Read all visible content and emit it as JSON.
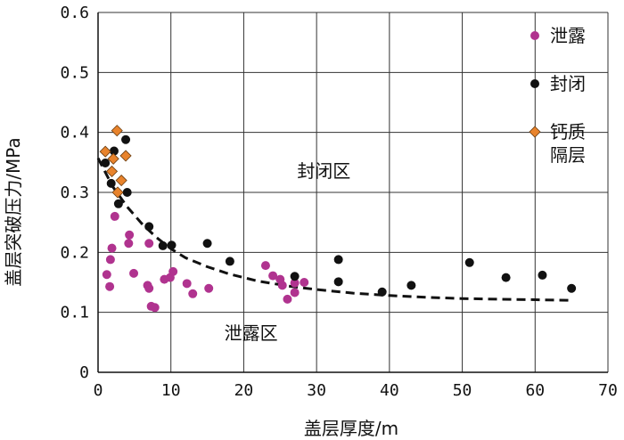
{
  "chart_data": {
    "type": "scatter",
    "title": "",
    "xlabel": "盖层厚度/m",
    "ylabel": "盖层突破压力/MPa",
    "xlim": [
      0,
      70
    ],
    "ylim": [
      0,
      0.6
    ],
    "xticks": [
      "0",
      "10",
      "20",
      "30",
      "40",
      "50",
      "60",
      "70"
    ],
    "yticks": [
      "0",
      "0.1",
      "0.2",
      "0.3",
      "0.4",
      "0.5",
      "0.6"
    ],
    "grid": true,
    "legend_position": "top-right",
    "series": [
      {
        "name": "泄露",
        "marker": "circle",
        "color": "#b0338f",
        "points": [
          [
            1.2,
            0.163
          ],
          [
            1.6,
            0.143
          ],
          [
            1.7,
            0.188
          ],
          [
            1.9,
            0.207
          ],
          [
            2.3,
            0.26
          ],
          [
            4.2,
            0.215
          ],
          [
            4.3,
            0.229
          ],
          [
            4.9,
            0.165
          ],
          [
            6.8,
            0.145
          ],
          [
            7.0,
            0.14
          ],
          [
            7.0,
            0.215
          ],
          [
            7.3,
            0.11
          ],
          [
            7.8,
            0.108
          ],
          [
            9.1,
            0.155
          ],
          [
            9.9,
            0.158
          ],
          [
            10.3,
            0.168
          ],
          [
            12.2,
            0.148
          ],
          [
            13.0,
            0.131
          ],
          [
            15.2,
            0.14
          ],
          [
            23.0,
            0.178
          ],
          [
            24.0,
            0.161
          ],
          [
            25.0,
            0.155
          ],
          [
            25.3,
            0.145
          ],
          [
            26.0,
            0.122
          ],
          [
            27.0,
            0.149
          ],
          [
            27.0,
            0.133
          ],
          [
            28.3,
            0.15
          ]
        ]
      },
      {
        "name": "封闭",
        "marker": "circle",
        "color": "#111111",
        "points": [
          [
            1.0,
            0.349
          ],
          [
            1.8,
            0.315
          ],
          [
            2.2,
            0.369
          ],
          [
            2.8,
            0.281
          ],
          [
            3.8,
            0.388
          ],
          [
            4.0,
            0.3
          ],
          [
            7.0,
            0.243
          ],
          [
            8.9,
            0.211
          ],
          [
            10.1,
            0.212
          ],
          [
            15.0,
            0.215
          ],
          [
            18.1,
            0.185
          ],
          [
            27.0,
            0.16
          ],
          [
            33.0,
            0.188
          ],
          [
            33.0,
            0.151
          ],
          [
            39.0,
            0.134
          ],
          [
            43.0,
            0.145
          ],
          [
            51.0,
            0.183
          ],
          [
            56.0,
            0.158
          ],
          [
            61.0,
            0.162
          ],
          [
            65.0,
            0.14
          ]
        ]
      },
      {
        "name": "钙质隔层",
        "legend_lines": [
          "钙质",
          "隔层"
        ],
        "marker": "diamond",
        "color": "#e8832c",
        "points": [
          [
            1.0,
            0.368
          ],
          [
            1.9,
            0.335
          ],
          [
            2.1,
            0.356
          ],
          [
            2.6,
            0.403
          ],
          [
            2.7,
            0.3
          ],
          [
            3.2,
            0.32
          ],
          [
            3.8,
            0.361
          ]
        ]
      }
    ],
    "fit_curve": {
      "style": "dashed",
      "color": "#111111",
      "points": [
        [
          0,
          0.357
        ],
        [
          2,
          0.31
        ],
        [
          4,
          0.276
        ],
        [
          6,
          0.248
        ],
        [
          8,
          0.225
        ],
        [
          10,
          0.206
        ],
        [
          12,
          0.191
        ],
        [
          15,
          0.176
        ],
        [
          18,
          0.164
        ],
        [
          22,
          0.152
        ],
        [
          26,
          0.144
        ],
        [
          30,
          0.138
        ],
        [
          35,
          0.132
        ],
        [
          40,
          0.128
        ],
        [
          45,
          0.125
        ],
        [
          50,
          0.123
        ],
        [
          55,
          0.122
        ],
        [
          60,
          0.121
        ],
        [
          65,
          0.12
        ]
      ]
    },
    "annotations": [
      {
        "text": "封闭区",
        "x": 31,
        "y": 0.325
      },
      {
        "text": "泄露区",
        "x": 21,
        "y": 0.055
      }
    ]
  }
}
